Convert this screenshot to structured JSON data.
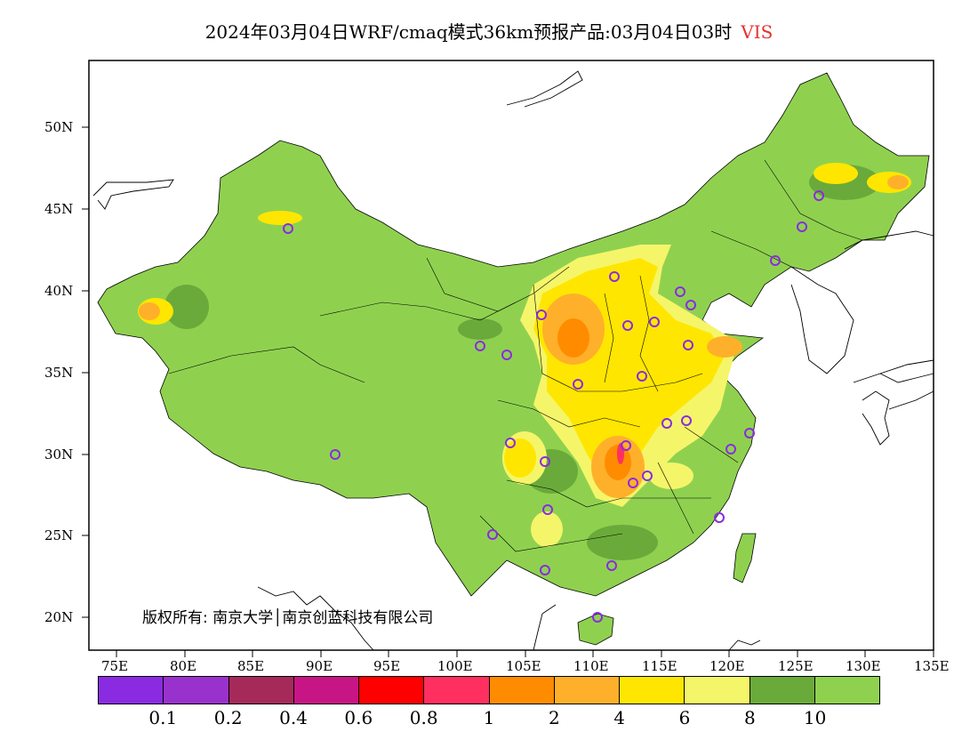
{
  "title": {
    "product": "2024年03月04日WRF/cmaq模式36km预报产品:03月04日03时",
    "variable": "VIS"
  },
  "lat_labels": [
    "50N",
    "45N",
    "40N",
    "35N",
    "30N",
    "25N",
    "20N"
  ],
  "lon_labels": [
    "75E",
    "80E",
    "85E",
    "90E",
    "95E",
    "100E",
    "105E",
    "110E",
    "115E",
    "120E",
    "125E",
    "130E",
    "135E"
  ],
  "copyright": "版权所有: 南京大学│南京创蓝科技有限公司",
  "colorbar": {
    "colors": [
      "#8a2be2",
      "#9932cc",
      "#a52a5a",
      "#c71585",
      "#ff0000",
      "#ff3060",
      "#ff8c00",
      "#ffb02a",
      "#ffe600",
      "#f5f56a",
      "#6aaa3a",
      "#8fd14f"
    ],
    "labels": [
      "0.1",
      "0.2",
      "0.4",
      "0.6",
      "0.8",
      "1",
      "2",
      "4",
      "6",
      "8",
      "10"
    ]
  },
  "legend_meaning": {
    "land_low_vis_classes": [
      "orange",
      "yellow",
      "light-yellow"
    ],
    "dominant_class_color": "#8fd14f"
  },
  "stations_icon": "circle-station-icon"
}
